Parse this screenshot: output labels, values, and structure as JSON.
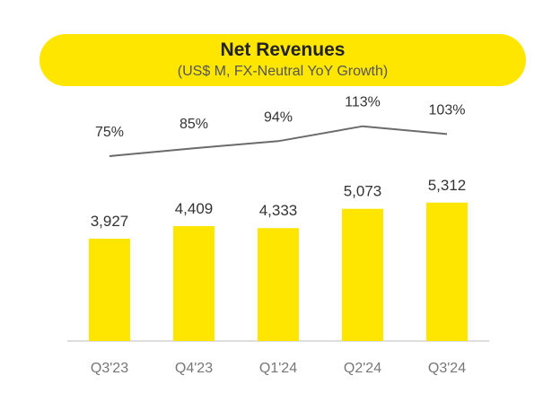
{
  "chart_data": {
    "type": "bar",
    "title": "Net Revenues",
    "subtitle": "(US$ M, FX-Neutral YoY Growth)",
    "categories": [
      "Q3'23",
      "Q4'23",
      "Q1'24",
      "Q2'24",
      "Q3'24"
    ],
    "series": [
      {
        "type": "bar",
        "values": [
          3927,
          4409,
          4333,
          5073,
          5312
        ],
        "labels": [
          "3,927",
          "4,409",
          "4,333",
          "5,073",
          "5,312"
        ],
        "color": "#FFE600"
      },
      {
        "type": "line",
        "values": [
          75,
          85,
          94,
          113,
          103
        ],
        "labels": [
          "75%",
          "85%",
          "94%",
          "113%",
          "103%"
        ],
        "color": "#6B6B6B"
      }
    ],
    "ylim": [
      0,
      9300
    ],
    "line_ylim": [
      -160,
      148
    ],
    "grid": false,
    "legend": "none"
  }
}
